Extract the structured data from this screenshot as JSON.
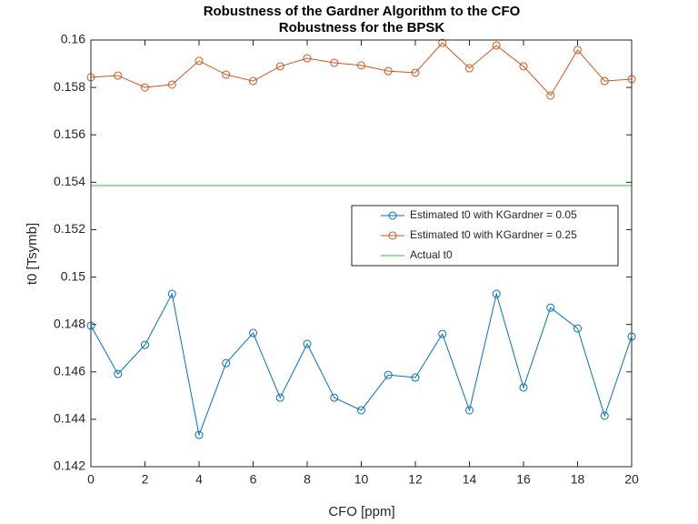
{
  "chart_data": {
    "type": "line",
    "title": "Robustness of the Gardner Algorithm to the CFO",
    "subtitle": "Robustness for the BPSK",
    "x_label": "CFO [ppm]",
    "y_label": "t0 [Tsymb]",
    "x": [
      0,
      1,
      2,
      3,
      4,
      5,
      6,
      7,
      8,
      9,
      10,
      11,
      12,
      13,
      14,
      15,
      16,
      17,
      18,
      19,
      20
    ],
    "series": [
      {
        "name": "Estimated t0 with KGardner = 0.05",
        "color": "#0072bd",
        "marker": "circle",
        "values": [
          0.14795,
          0.14591,
          0.14714,
          0.14929,
          0.14334,
          0.14637,
          0.14764,
          0.14491,
          0.14718,
          0.14491,
          0.14438,
          0.14587,
          0.14576,
          0.1476,
          0.14438,
          0.14929,
          0.14534,
          0.14871,
          0.14783,
          0.14415,
          0.14749
        ]
      },
      {
        "name": "Estimated t0 with KGardner = 0.25",
        "color": "#d95319",
        "marker": "circle",
        "values": [
          0.15843,
          0.1585,
          0.158,
          0.15812,
          0.15912,
          0.15854,
          0.15827,
          0.15889,
          0.15923,
          0.15904,
          0.15893,
          0.15869,
          0.15862,
          0.15988,
          0.15881,
          0.15977,
          0.15889,
          0.15766,
          0.15958,
          0.15827,
          0.15835
        ]
      },
      {
        "name": "Actual t0",
        "color": "#2dc52d",
        "marker": "none",
        "values": [
          0.15386,
          0.15386,
          0.15386,
          0.15386,
          0.15386,
          0.15386,
          0.15386,
          0.15386,
          0.15386,
          0.15386,
          0.15386,
          0.15386,
          0.15386,
          0.15386,
          0.15386,
          0.15386,
          0.15386,
          0.15386,
          0.15386,
          0.15386,
          0.15386
        ]
      }
    ],
    "xlim": [
      0,
      20
    ],
    "xticks": [
      0,
      2,
      4,
      6,
      8,
      10,
      12,
      14,
      16,
      18,
      20
    ],
    "ylim": [
      0.142,
      0.16
    ],
    "yticks": [
      0.142,
      0.144,
      0.146,
      0.148,
      0.15,
      0.152,
      0.154,
      0.156,
      0.158,
      0.16
    ],
    "grid": false,
    "legend": "east"
  }
}
